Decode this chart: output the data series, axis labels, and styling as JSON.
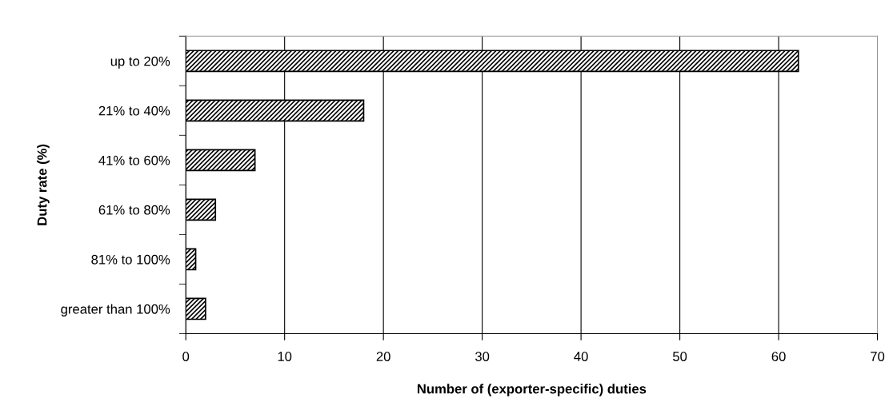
{
  "chart_data": {
    "type": "bar",
    "orientation": "horizontal",
    "categories": [
      "up to 20%",
      "21% to 40%",
      "41% to 60%",
      "61% to 80%",
      "81% to 100%",
      "greater than 100%"
    ],
    "values": [
      62,
      18,
      7,
      3,
      1,
      2
    ],
    "color": "#000000",
    "xlabel": "Number of (exporter-specific) duties",
    "ylabel": "Duty rate (%)",
    "xlim": [
      0,
      70
    ],
    "xticks": [
      0,
      10,
      20,
      30,
      40,
      50,
      60,
      70
    ],
    "grid": "x"
  }
}
